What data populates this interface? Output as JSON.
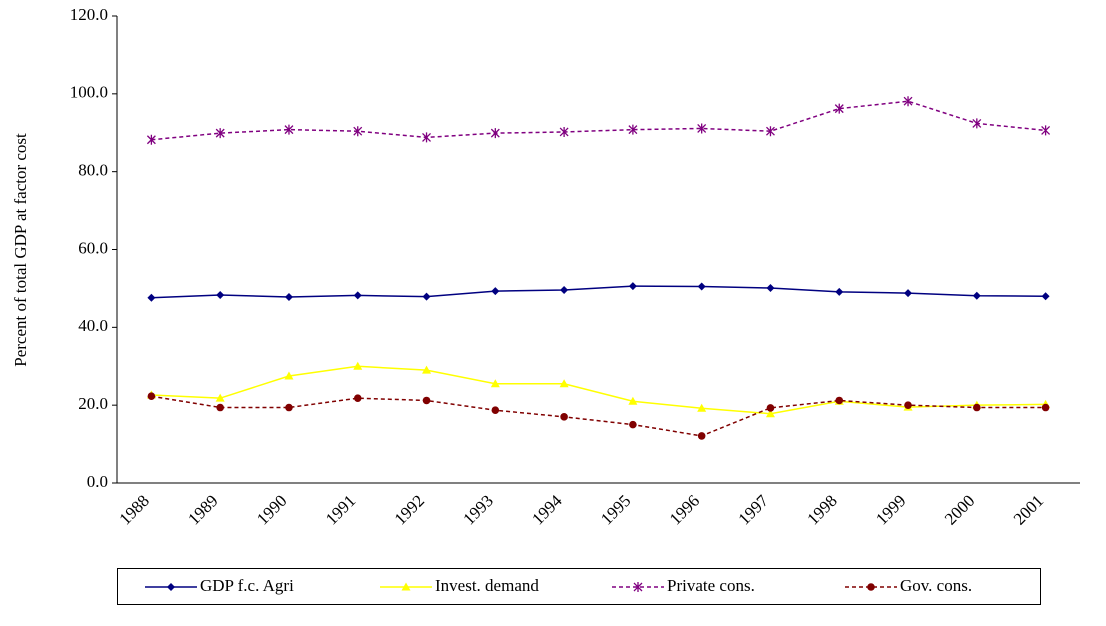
{
  "chart_data": {
    "type": "line",
    "y_label": "Percent of total GDP at factor cost",
    "categories": [
      "1988",
      "1989",
      "1990",
      "1991",
      "1992",
      "1993",
      "1994",
      "1995",
      "1996",
      "1997",
      "1998",
      "1999",
      "2000",
      "2001"
    ],
    "ylim": [
      0,
      120
    ],
    "yticks": [
      {
        "value": 0,
        "label": "0.0"
      },
      {
        "value": 20,
        "label": "20.0"
      },
      {
        "value": 40,
        "label": "40.0"
      },
      {
        "value": 60,
        "label": "60.0"
      },
      {
        "value": 80,
        "label": "80.0"
      },
      {
        "value": 100,
        "label": "100.0"
      },
      {
        "value": 120,
        "label": "120.0"
      }
    ],
    "legend": "bottom",
    "series": [
      {
        "name": "GDP f.c. Agri",
        "color": "#000080",
        "marker": "diamond",
        "dash": false,
        "values": [
          47.6,
          48.3,
          47.8,
          48.2,
          47.9,
          49.3,
          49.6,
          50.6,
          50.5,
          50.1,
          49.1,
          48.8,
          48.1,
          48.0
        ]
      },
      {
        "name": "Invest. demand",
        "color": "#ffff00",
        "marker": "triangle",
        "dash": false,
        "values": [
          22.6,
          21.8,
          27.5,
          30.0,
          29.0,
          25.5,
          25.5,
          21.0,
          19.2,
          17.8,
          21.0,
          19.5,
          20.0,
          20.2
        ]
      },
      {
        "name": "Private cons.",
        "color": "#800080",
        "marker": "asterisk",
        "dash": true,
        "values": [
          88.2,
          89.9,
          90.8,
          90.4,
          88.8,
          89.9,
          90.2,
          90.8,
          91.1,
          90.4,
          96.2,
          98.1,
          92.4,
          90.6
        ]
      },
      {
        "name": "Gov. cons.",
        "color": "#800000",
        "marker": "circle",
        "dash": true,
        "values": [
          22.3,
          19.4,
          19.4,
          21.8,
          21.2,
          18.7,
          17.0,
          15.0,
          12.1,
          19.3,
          21.2,
          20.0,
          19.4,
          19.4
        ]
      }
    ]
  }
}
